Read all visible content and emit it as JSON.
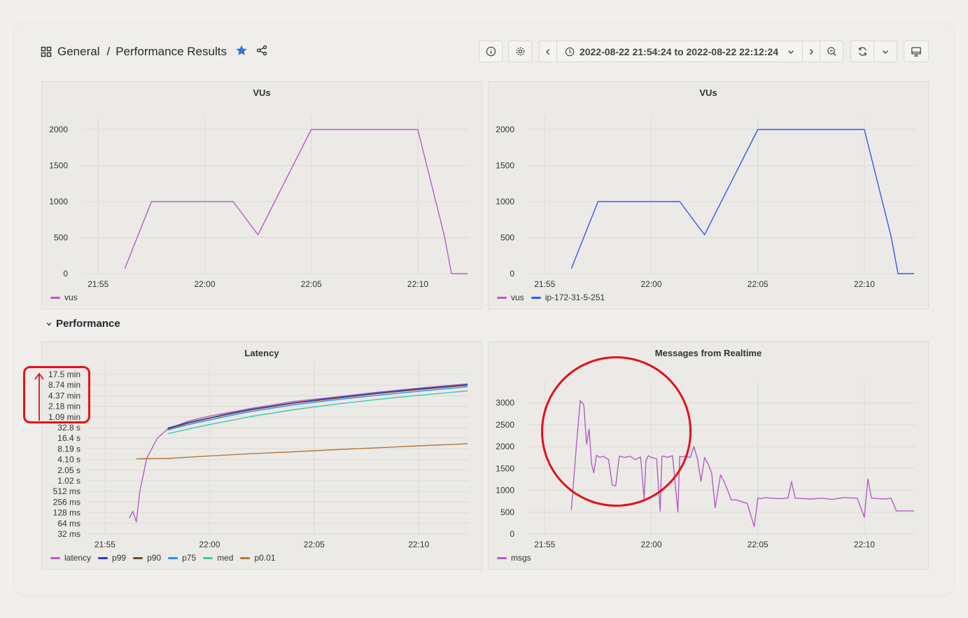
{
  "breadcrumb": {
    "folder": "General",
    "separator": "/",
    "dashboard": "Performance Results"
  },
  "toolbar": {
    "time_range": "2022-08-22 21:54:24 to 2022-08-22 22:12:24"
  },
  "colors": {
    "vus_purple": "#b45fc0",
    "ip_blue": "#3a55f0",
    "p99": "#2a3ac8",
    "p90": "#6b4e2a",
    "p75": "#2f8cf0",
    "med": "#3bc9b0",
    "p001": "#b5793a",
    "annotation_red": "#e5101c"
  },
  "section": {
    "label": "Performance"
  },
  "panels": {
    "vus_left": {
      "title": "VUs",
      "legend": [
        {
          "label": "vus",
          "color": "#b45fc0"
        }
      ]
    },
    "vus_right": {
      "title": "VUs",
      "legend": [
        {
          "label": "vus",
          "color": "#b45fc0"
        },
        {
          "label": "ip-172-31-5-251",
          "color": "#3a55f0"
        }
      ]
    },
    "latency": {
      "title": "Latency",
      "legend": [
        {
          "label": "latency",
          "color": "#b45fc0"
        },
        {
          "label": "p99",
          "color": "#2a3ac8"
        },
        {
          "label": "p90",
          "color": "#6b4e2a"
        },
        {
          "label": "p75",
          "color": "#2f8cf0"
        },
        {
          "label": "med",
          "color": "#3bc9b0"
        },
        {
          "label": "p0.01",
          "color": "#b5793a"
        }
      ]
    },
    "messages": {
      "title": "Messages from Realtime",
      "legend": [
        {
          "label": "msgs",
          "color": "#b45fc0"
        }
      ]
    }
  },
  "chart_data": [
    {
      "type": "line",
      "title": "VUs",
      "x_ticks": [
        "21:55",
        "22:00",
        "22:05",
        "22:10"
      ],
      "y_ticks": [
        "0",
        "500",
        "1000",
        "1500",
        "2000"
      ],
      "ylim": [
        0,
        2000
      ],
      "xlim": [
        "21:54:24",
        "22:12:24"
      ],
      "series": [
        {
          "name": "vus",
          "x": [
            "21:56:15",
            "21:57:30",
            "22:01:20",
            "22:02:30",
            "22:05:00",
            "22:10:00",
            "22:11:15",
            "22:11:35",
            "22:12:20"
          ],
          "values": [
            70,
            1000,
            1000,
            540,
            2000,
            2000,
            520,
            0,
            0
          ]
        }
      ]
    },
    {
      "type": "line",
      "title": "VUs",
      "x_ticks": [
        "21:55",
        "22:00",
        "22:05",
        "22:10"
      ],
      "y_ticks": [
        "0",
        "500",
        "1000",
        "1500",
        "2000"
      ],
      "ylim": [
        0,
        2000
      ],
      "xlim": [
        "21:54:24",
        "22:12:24"
      ],
      "series": [
        {
          "name": "ip-172-31-5-251",
          "x": [
            "21:56:15",
            "21:57:30",
            "22:01:20",
            "22:02:30",
            "22:05:00",
            "22:10:00",
            "22:11:15",
            "22:11:35",
            "22:12:20"
          ],
          "values": [
            70,
            1000,
            1000,
            540,
            2000,
            2000,
            520,
            0,
            0
          ]
        }
      ]
    },
    {
      "type": "line",
      "title": "Latency",
      "scale": "log2",
      "x_ticks": [
        "21:55",
        "22:00",
        "22:05",
        "22:10"
      ],
      "y_ticks": [
        "32 ms",
        "64 ms",
        "128 ms",
        "256 ms",
        "512 ms",
        "1.02 s",
        "2.05 s",
        "4.10 s",
        "8.19 s",
        "16.4 s",
        "32.8 s",
        "1.09 min",
        "2.18 min",
        "4.37 min",
        "8.74 min",
        "17.5 min"
      ],
      "y_tick_values_seconds": [
        0.032,
        0.064,
        0.128,
        0.256,
        0.512,
        1.02,
        2.05,
        4.1,
        8.19,
        16.4,
        32.8,
        65.5,
        131,
        262,
        524,
        1049
      ],
      "xlim": [
        "21:54:24",
        "22:12:24"
      ],
      "series": [
        {
          "name": "latency",
          "x": [
            "21:56:10",
            "21:56:20",
            "21:56:30",
            "21:56:40",
            "21:57:00",
            "21:57:30",
            "21:58:00",
            "21:59:00",
            "22:00:00",
            "22:01:00",
            "22:02:00",
            "22:04:00",
            "22:06:00",
            "22:08:00",
            "22:10:00",
            "22:12:20"
          ],
          "values_seconds": [
            0.09,
            0.14,
            0.07,
            0.5,
            4.5,
            16.4,
            30,
            50,
            70,
            90,
            115,
            180,
            240,
            330,
            430,
            570
          ]
        },
        {
          "name": "p99",
          "x": [
            "21:58:00",
            "21:59:00",
            "22:00:00",
            "22:01:00",
            "22:02:00",
            "22:04:00",
            "22:06:00",
            "22:08:00",
            "22:10:00",
            "22:12:20"
          ],
          "values_seconds": [
            32,
            46,
            62,
            84,
            108,
            165,
            230,
            310,
            410,
            540
          ]
        },
        {
          "name": "p90",
          "x": [
            "21:58:00",
            "21:59:00",
            "22:00:00",
            "22:01:00",
            "22:02:00",
            "22:04:00",
            "22:06:00",
            "22:08:00",
            "22:10:00",
            "22:12:20"
          ],
          "values_seconds": [
            30,
            44,
            60,
            80,
            104,
            160,
            220,
            300,
            390,
            520
          ]
        },
        {
          "name": "p75",
          "x": [
            "21:58:00",
            "21:59:00",
            "22:00:00",
            "22:01:00",
            "22:02:00",
            "22:04:00",
            "22:06:00",
            "22:08:00",
            "22:10:00",
            "22:12:20"
          ],
          "values_seconds": [
            28,
            40,
            54,
            72,
            94,
            145,
            200,
            270,
            350,
            470
          ]
        },
        {
          "name": "med",
          "x": [
            "21:58:00",
            "21:59:00",
            "22:00:00",
            "22:01:00",
            "22:02:00",
            "22:04:00",
            "22:06:00",
            "22:08:00",
            "22:10:00",
            "22:12:20"
          ],
          "values_seconds": [
            22,
            30,
            40,
            52,
            68,
            105,
            150,
            205,
            270,
            360
          ]
        },
        {
          "name": "p0.01",
          "x": [
            "21:56:30",
            "21:58:00",
            "22:00:00",
            "22:02:00",
            "22:04:00",
            "22:06:00",
            "22:08:00",
            "22:10:00",
            "22:12:20"
          ],
          "values_seconds": [
            4.3,
            4.4,
            5.2,
            6.0,
            6.8,
            7.8,
            8.8,
            10.0,
            11.5
          ]
        }
      ]
    },
    {
      "type": "line",
      "title": "Messages from Realtime",
      "x_ticks": [
        "21:55",
        "22:00",
        "22:05",
        "22:10"
      ],
      "y_ticks": [
        "0",
        "500",
        "1000",
        "1500",
        "2000",
        "2500",
        "3000"
      ],
      "ylim": [
        0,
        3200
      ],
      "xlim": [
        "21:54:24",
        "22:12:24"
      ],
      "series": [
        {
          "name": "msgs",
          "x": [
            "21:56:15",
            "21:56:30",
            "21:56:40",
            "21:56:50",
            "21:56:58",
            "21:57:05",
            "21:57:12",
            "21:57:18",
            "21:57:26",
            "21:57:35",
            "21:57:45",
            "21:58:00",
            "21:58:10",
            "21:58:20",
            "21:58:30",
            "21:58:45",
            "21:59:00",
            "21:59:15",
            "21:59:30",
            "21:59:40",
            "21:59:45",
            "21:59:52",
            "22:00:00",
            "22:00:15",
            "22:00:25",
            "22:00:30",
            "22:00:35",
            "22:00:45",
            "22:01:00",
            "22:01:15",
            "22:01:20",
            "22:01:25",
            "22:01:35",
            "22:01:50",
            "22:02:00",
            "22:02:10",
            "22:02:20",
            "22:02:30",
            "22:02:40",
            "22:02:50",
            "22:03:00",
            "22:03:15",
            "22:03:25",
            "22:03:35",
            "22:03:45",
            "22:04:00",
            "22:04:30",
            "22:04:50",
            "22:05:00",
            "22:05:10",
            "22:05:20",
            "22:06:00",
            "22:06:25",
            "22:06:35",
            "22:06:45",
            "22:07:30",
            "22:08:00",
            "22:08:30",
            "22:09:00",
            "22:09:40",
            "22:10:00",
            "22:10:10",
            "22:10:20",
            "22:11:00",
            "22:11:15",
            "22:11:30",
            "22:12:20"
          ],
          "values": [
            550,
            2100,
            3050,
            2950,
            2050,
            2400,
            1600,
            1400,
            1800,
            1750,
            1780,
            1700,
            1120,
            1100,
            1780,
            1750,
            1780,
            1700,
            1760,
            800,
            1680,
            1790,
            1750,
            1720,
            520,
            1780,
            1780,
            1750,
            1790,
            500,
            1780,
            1760,
            1780,
            1750,
            2000,
            1720,
            1200,
            1750,
            1600,
            1400,
            600,
            1350,
            1200,
            1000,
            780,
            780,
            700,
            170,
            820,
            810,
            830,
            810,
            820,
            1200,
            820,
            800,
            820,
            790,
            830,
            820,
            380,
            1260,
            820,
            800,
            820,
            530,
            530
          ]
        }
      ]
    }
  ]
}
